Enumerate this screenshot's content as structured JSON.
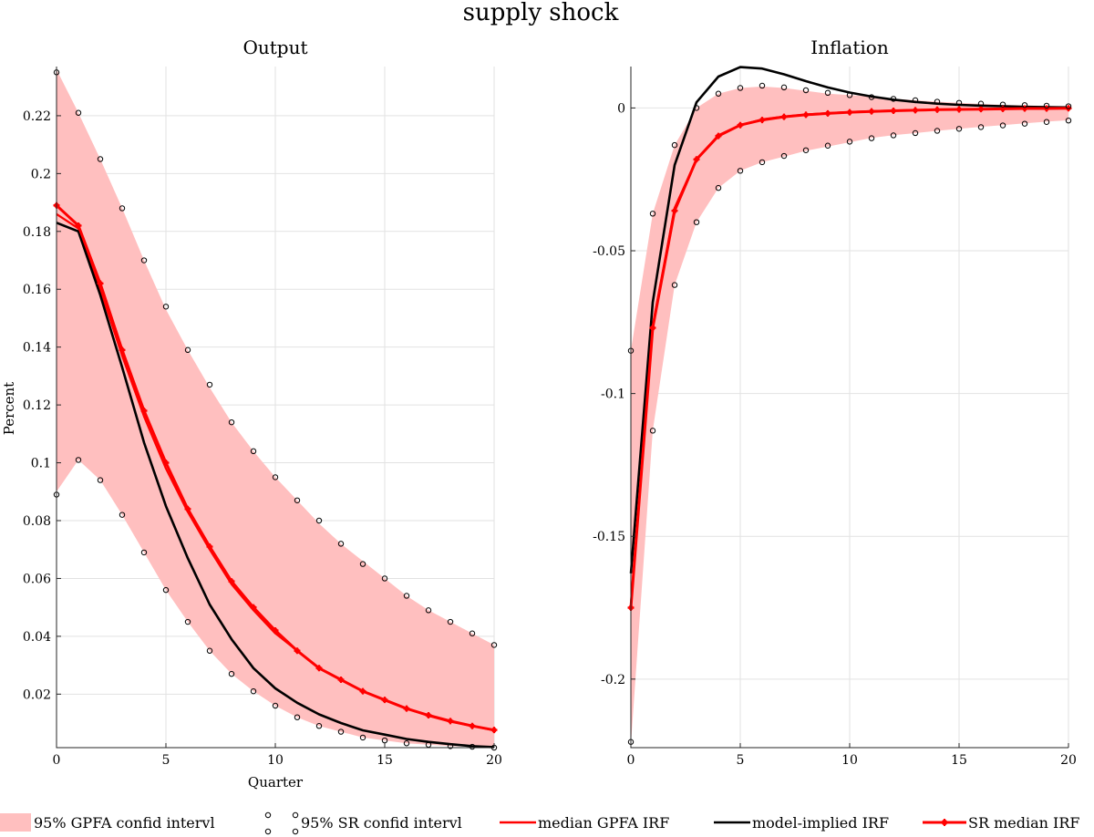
{
  "figure_title": "supply shock",
  "colors": {
    "band": "#ffbfbf",
    "gpfa_median": "#ff0000",
    "model": "#000000",
    "sr_median": "#ff0000",
    "sr_marker": "#000000"
  },
  "legend": [
    {
      "key": "band",
      "label": "95% GPFA confid intervl"
    },
    {
      "key": "sr_ci",
      "label": "95% SR confid intervl"
    },
    {
      "key": "gpfa_median",
      "label": "median GPFA IRF"
    },
    {
      "key": "model",
      "label": "model-implied IRF"
    },
    {
      "key": "sr_median",
      "label": "SR median IRF"
    }
  ],
  "chart_data": [
    {
      "type": "line",
      "title": "Output",
      "xlabel": "Quarter",
      "ylabel": "Percent",
      "xlim": [
        0,
        20
      ],
      "ylim": [
        0.0015,
        0.237
      ],
      "xticks": [
        0,
        5,
        10,
        15,
        20
      ],
      "yticks": [
        0.02,
        0.04,
        0.06,
        0.08,
        0.1,
        0.12,
        0.14,
        0.16,
        0.18,
        0.2,
        0.22
      ],
      "ytick_labels": [
        "0.02",
        "0.04",
        "0.06",
        "0.08",
        "0.1",
        "0.12",
        "0.14",
        "0.16",
        "0.18",
        "0.2",
        "0.22"
      ],
      "grid": true,
      "x": [
        0,
        1,
        2,
        3,
        4,
        5,
        6,
        7,
        8,
        9,
        10,
        11,
        12,
        13,
        14,
        15,
        16,
        17,
        18,
        19,
        20
      ],
      "series": [
        {
          "key": "band_upper",
          "values": [
            0.236,
            0.221,
            0.205,
            0.188,
            0.17,
            0.153,
            0.139,
            0.126,
            0.114,
            0.104,
            0.095,
            0.087,
            0.079,
            0.072,
            0.066,
            0.06,
            0.054,
            0.049,
            0.045,
            0.041,
            0.037
          ]
        },
        {
          "key": "band_lower",
          "values": [
            0.09,
            0.101,
            0.094,
            0.082,
            0.069,
            0.056,
            0.045,
            0.035,
            0.027,
            0.021,
            0.016,
            0.012,
            0.009,
            0.007,
            0.005,
            0.004,
            0.003,
            0.0025,
            0.002,
            0.0018,
            0.0015
          ]
        },
        {
          "key": "sr_ci_upper",
          "values": [
            0.235,
            0.221,
            0.205,
            0.188,
            0.17,
            0.154,
            0.139,
            0.127,
            0.114,
            0.104,
            0.095,
            0.087,
            0.08,
            0.072,
            0.065,
            0.06,
            0.054,
            0.049,
            0.045,
            0.041,
            0.037
          ]
        },
        {
          "key": "sr_ci_lower",
          "values": [
            0.089,
            0.101,
            0.094,
            0.082,
            0.069,
            0.056,
            0.045,
            0.035,
            0.027,
            0.021,
            0.016,
            0.012,
            0.009,
            0.007,
            0.005,
            0.004,
            0.003,
            0.0025,
            0.002,
            0.0018,
            0.0015
          ]
        },
        {
          "key": "gpfa_median",
          "name": "median GPFA IRF",
          "values": [
            0.186,
            0.181,
            0.16,
            0.137,
            0.116,
            0.098,
            0.083,
            0.07,
            0.058,
            0.049,
            0.041,
            0.035,
            0.029,
            0.025,
            0.021,
            0.018,
            0.015,
            0.0125,
            0.0105,
            0.009,
            0.0075
          ]
        },
        {
          "key": "model",
          "name": "model-implied IRF",
          "values": [
            0.183,
            0.18,
            0.158,
            0.133,
            0.107,
            0.085,
            0.067,
            0.051,
            0.039,
            0.029,
            0.022,
            0.017,
            0.013,
            0.01,
            0.0075,
            0.006,
            0.0045,
            0.0035,
            0.0027,
            0.002,
            0.0017
          ]
        },
        {
          "key": "sr_median",
          "name": "SR median IRF",
          "values": [
            0.189,
            0.182,
            0.162,
            0.139,
            0.118,
            0.1,
            0.084,
            0.071,
            0.059,
            0.05,
            0.042,
            0.035,
            0.029,
            0.025,
            0.021,
            0.018,
            0.015,
            0.0127,
            0.0107,
            0.009,
            0.0076
          ]
        }
      ]
    },
    {
      "type": "line",
      "title": "Inflation",
      "xlabel": "",
      "ylabel": "",
      "xlim": [
        0,
        20
      ],
      "ylim": [
        -0.224,
        0.0145
      ],
      "xticks": [
        0,
        5,
        10,
        15,
        20
      ],
      "yticks": [
        -0.2,
        -0.15,
        -0.1,
        -0.05,
        0
      ],
      "ytick_labels": [
        "-0.2",
        "-0.15",
        "-0.1",
        "-0.05",
        "0"
      ],
      "grid": true,
      "x": [
        0,
        1,
        2,
        3,
        4,
        5,
        6,
        7,
        8,
        9,
        10,
        11,
        12,
        13,
        14,
        15,
        16,
        17,
        18,
        19,
        20
      ],
      "series": [
        {
          "key": "band_upper",
          "values": [
            -0.085,
            -0.037,
            -0.013,
            0.0,
            0.005,
            0.007,
            0.0075,
            0.007,
            0.006,
            0.005,
            0.0045,
            0.004,
            0.0033,
            0.0027,
            0.0022,
            0.0018,
            0.0014,
            0.0011,
            0.0009,
            0.0007,
            0.0005
          ]
        },
        {
          "key": "band_lower",
          "values": [
            -0.223,
            -0.113,
            -0.062,
            -0.04,
            -0.028,
            -0.022,
            -0.019,
            -0.017,
            -0.015,
            -0.0135,
            -0.012,
            -0.0105,
            -0.0095,
            -0.0088,
            -0.008,
            -0.0073,
            -0.0066,
            -0.006,
            -0.0054,
            -0.0048,
            -0.0043
          ]
        },
        {
          "key": "sr_ci_upper",
          "values": [
            -0.085,
            -0.037,
            -0.013,
            0.0,
            0.005,
            0.007,
            0.0078,
            0.0072,
            0.0062,
            0.0053,
            0.0045,
            0.0038,
            0.0032,
            0.0027,
            0.0022,
            0.0018,
            0.0015,
            0.0012,
            0.001,
            0.0008,
            0.0006
          ]
        },
        {
          "key": "sr_ci_lower",
          "values": [
            -0.222,
            -0.113,
            -0.062,
            -0.04,
            -0.028,
            -0.022,
            -0.019,
            -0.0168,
            -0.0148,
            -0.0132,
            -0.0118,
            -0.0106,
            -0.0096,
            -0.0088,
            -0.008,
            -0.0073,
            -0.0067,
            -0.0061,
            -0.0055,
            -0.0049,
            -0.0044
          ]
        },
        {
          "key": "gpfa_median",
          "name": "median GPFA IRF",
          "values": [
            -0.174,
            -0.076,
            -0.035,
            -0.018,
            -0.0095,
            -0.006,
            -0.004,
            -0.003,
            -0.0023,
            -0.0018,
            -0.0014,
            -0.0011,
            -0.0009,
            -0.0007,
            -0.0006,
            -0.0005,
            -0.0004,
            -0.0003,
            -0.0002,
            -0.0002,
            -0.0001
          ]
        },
        {
          "key": "model",
          "name": "model-implied IRF",
          "values": [
            -0.163,
            -0.068,
            -0.02,
            0.002,
            0.011,
            0.0143,
            0.0138,
            0.0118,
            0.0094,
            0.0072,
            0.0054,
            0.004,
            0.0029,
            0.0021,
            0.0015,
            0.0011,
            0.0008,
            0.0006,
            0.0004,
            0.0003,
            0.0002
          ]
        },
        {
          "key": "sr_median",
          "name": "SR median IRF",
          "values": [
            -0.175,
            -0.077,
            -0.036,
            -0.018,
            -0.0098,
            -0.006,
            -0.0042,
            -0.0031,
            -0.0024,
            -0.0019,
            -0.0015,
            -0.0012,
            -0.001,
            -0.0008,
            -0.0006,
            -0.0005,
            -0.0004,
            -0.0003,
            -0.0002,
            -0.0002,
            -0.0001
          ]
        }
      ]
    }
  ]
}
